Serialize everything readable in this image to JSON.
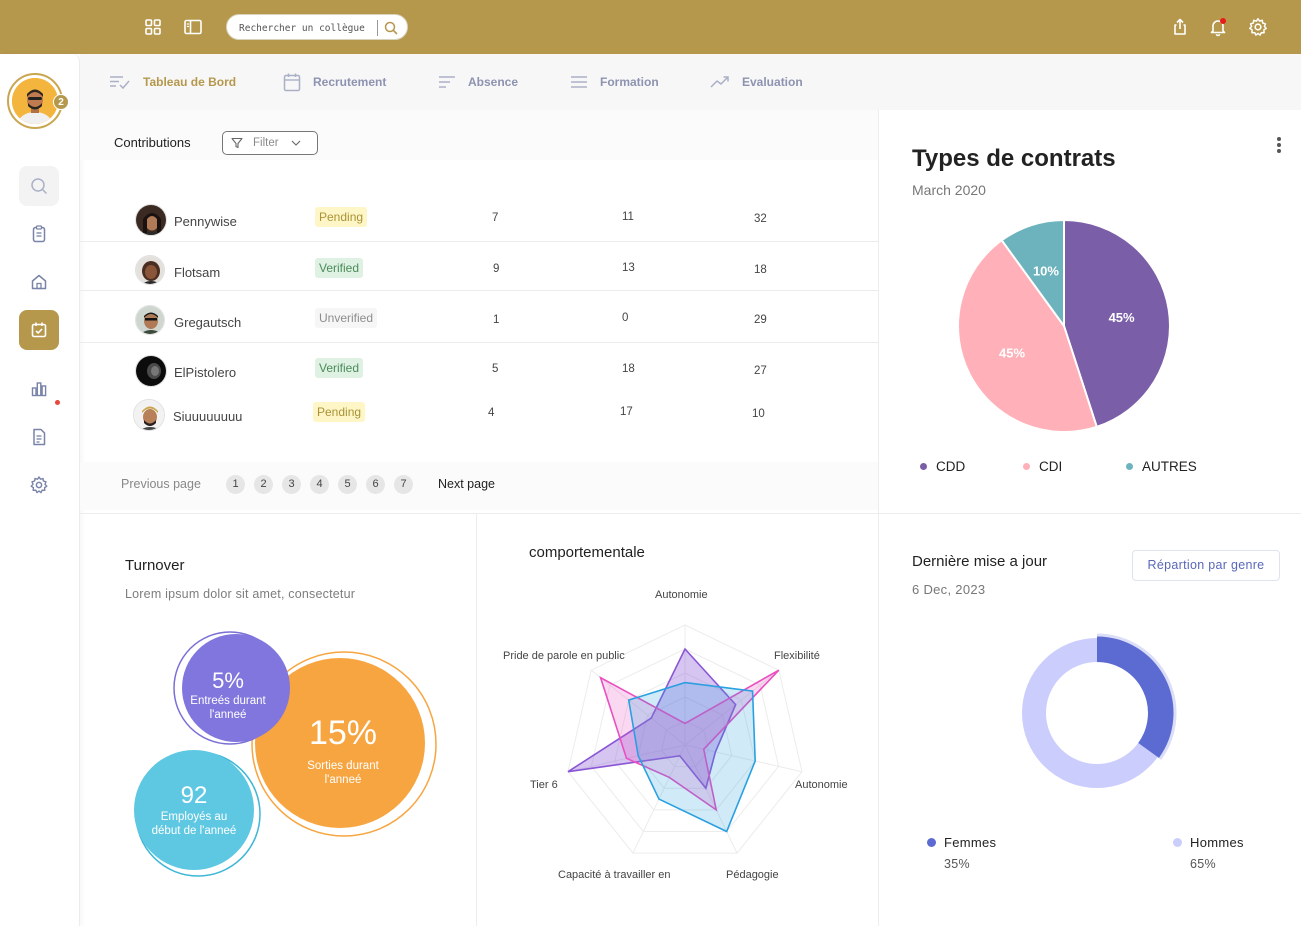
{
  "search": {
    "placeholder": "Rechercher un collègue"
  },
  "user": {
    "notification_count": "2"
  },
  "tabs": [
    {
      "label": "Tableau de Bord",
      "icon": "dashboard-list-icon",
      "active": true
    },
    {
      "label": "Recrutement",
      "icon": "calendar-icon"
    },
    {
      "label": "Absence",
      "icon": "lines-icon"
    },
    {
      "label": "Formation",
      "icon": "menu-icon"
    },
    {
      "label": "Evaluation",
      "icon": "trend-icon"
    }
  ],
  "contributions": {
    "title": "Contributions",
    "filter_label": "Filter",
    "rows": [
      {
        "name": "Pennywise",
        "status": "Pending",
        "c1": "7",
        "c2": "11",
        "c3": "32"
      },
      {
        "name": "Flotsam",
        "status": "Verified",
        "c1": "9",
        "c2": "13",
        "c3": "18"
      },
      {
        "name": "Gregautsch",
        "status": "Unverified",
        "c1": "1",
        "c2": "0",
        "c3": "29"
      },
      {
        "name": "ElPistolero",
        "status": "Verified",
        "c1": "5",
        "c2": "18",
        "c3": "27"
      },
      {
        "name": "Siuuuuuuuu",
        "status": "Pending",
        "c1": "4",
        "c2": "17",
        "c3": "10"
      }
    ],
    "pagination": {
      "previous": "Previous page",
      "next": "Next page",
      "pages": [
        "1",
        "2",
        "3",
        "4",
        "5",
        "6",
        "7"
      ]
    }
  },
  "contracts": {
    "title": "Types de contrats",
    "subtitle": "March 2020",
    "legend": [
      "CDD",
      "CDI",
      "AUTRES"
    ],
    "slice_labels": [
      "45%",
      "45%",
      "10%"
    ]
  },
  "turnover": {
    "title": "Turnover",
    "subtitle": "Lorem ipsum dolor sit amet, consectetur",
    "bubbles": [
      {
        "value": "5%",
        "label1": "Entreés durant",
        "label2": "l'anneé"
      },
      {
        "value": "15%",
        "label1": "Sorties durant",
        "label2": "l'anneé"
      },
      {
        "value": "92",
        "label1": "Employés au",
        "label2": "début de l'anneé"
      }
    ]
  },
  "behaviour": {
    "title": "comportementale",
    "axes": [
      "Autonomie",
      "Flexibilité",
      "Autonomie",
      "Pédagogie",
      "Capacité à travailler en",
      "Tier 6",
      "Pride de parole en public"
    ]
  },
  "update": {
    "title": "Dernière mise a jour",
    "date": "6 Dec, 2023",
    "button": "Répartion par genre",
    "legend": [
      {
        "label": "Femmes",
        "value": "35%"
      },
      {
        "label": "Hommes",
        "value": "65%"
      }
    ]
  },
  "colors": {
    "gold": "#b5984c",
    "purple": "#7b5ea8",
    "pink": "#ffb0b8",
    "teal": "#6db3bd",
    "orange": "#f7a541",
    "indigo": "#5c6bd1"
  },
  "chart_data": [
    {
      "type": "pie",
      "title": "Types de contrats",
      "categories": [
        "CDD",
        "CDI",
        "AUTRES"
      ],
      "values": [
        45,
        45,
        10
      ]
    },
    {
      "type": "bubble",
      "title": "Turnover",
      "categories": [
        "Entreés durant l'anneé",
        "Sorties durant l'anneé",
        "Employés au début de l'anneé"
      ],
      "values": [
        5,
        15,
        92
      ]
    },
    {
      "type": "radar",
      "title": "comportementale",
      "categories": [
        "Autonomie",
        "Flexibilité",
        "Autonomie",
        "Pédagogie",
        "Capacité à travailler en",
        "Tier 6",
        "Pride de parole en public"
      ],
      "ylim": [
        0,
        5
      ],
      "series": [
        {
          "color": "#8a56d6",
          "values": [
            4.0,
            2.7,
            1.3,
            2.0,
            0.5,
            5.0,
            1.8
          ]
        },
        {
          "color": "#e94fc0",
          "values": [
            0.9,
            5.0,
            0.8,
            3.0,
            1.5,
            2.5,
            4.5
          ]
        },
        {
          "color": "#2aa0e0",
          "values": [
            2.6,
            3.6,
            3.0,
            4.0,
            2.5,
            2.0,
            3.0
          ]
        }
      ]
    },
    {
      "type": "donut",
      "title": "Dernière mise a jour",
      "categories": [
        "Femmes",
        "Hommes"
      ],
      "values": [
        35,
        65
      ]
    }
  ]
}
